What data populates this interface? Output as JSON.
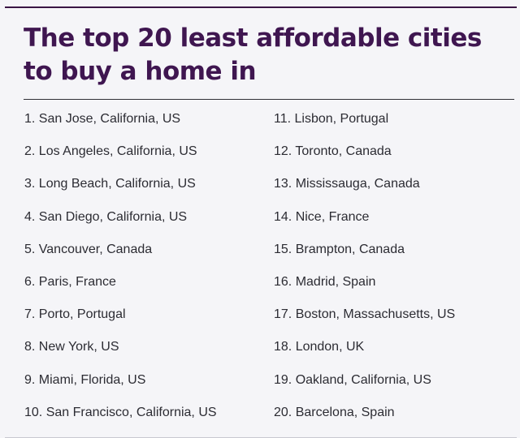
{
  "title": "The top 20 least affordable cities to buy a home in",
  "cities_left": [
    "1. San Jose, California, US",
    "2. Los Angeles, California, US",
    "3. Long Beach, California, US",
    "4. San Diego, California, US",
    "5. Vancouver, Canada",
    "6. Paris, France",
    "7. Porto, Portugal",
    "8. New York, US",
    "9. Miami, Florida, US",
    "10. San Francisco, California, US"
  ],
  "cities_right": [
    "11. Lisbon, Portugal",
    "12. Toronto, Canada",
    "13. Mississauga, Canada",
    "14. Nice, France",
    "15. Brampton, Canada",
    "16. Madrid, Spain",
    "17. Boston, Massachusetts, US",
    "18. London, UK",
    "19. Oakland, California, US",
    "20. Barcelona, Spain"
  ],
  "colors": {
    "title": "#3f1650",
    "text": "#2c2c33",
    "background": "#f5f5f8"
  }
}
